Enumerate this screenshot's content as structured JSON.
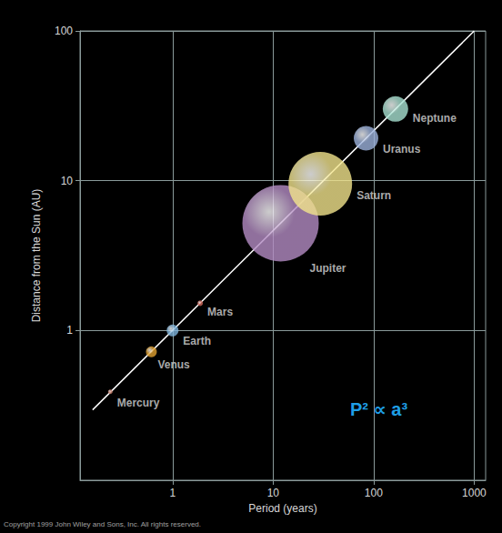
{
  "chart_data": {
    "type": "scatter",
    "log": true,
    "grid": true,
    "x_label": "Period (years)",
    "y_label": "Distance from the Sun (AU)",
    "labels": [
      "Mercury",
      "Venus",
      "Earth",
      "Mars",
      "Jupiter",
      "Saturn",
      "Uranus",
      "Neptune"
    ],
    "x": [
      0.24,
      0.615,
      1,
      1.88,
      11.86,
      29.46,
      84.0,
      164.8
    ],
    "values": [
      0.39,
      0.72,
      1,
      1.52,
      5.2,
      9.54,
      19.2,
      30.1
    ],
    "sizes": [
      5,
      12,
      13,
      6,
      84,
      70,
      27,
      28
    ],
    "colors": [
      "#c8806e",
      "#e0a030",
      "#7fb4dc",
      "#d0685c",
      "#b48cc4",
      "#f2e48c",
      "#9cb2dc",
      "#a8e2d2"
    ],
    "fit_line": {
      "x": [
        0.16,
        1000
      ],
      "values": [
        0.295,
        100
      ],
      "color": "#ffffff"
    },
    "xlim": [
      0.12,
      1300
    ],
    "xticks": [
      1,
      10,
      100,
      1000
    ],
    "ylim": [
      0.1,
      100
    ],
    "yticks": [
      1,
      10,
      100
    ],
    "annotations": [
      {
        "text": "P² ∝ a³",
        "color": "#1e9ee6"
      }
    ],
    "caption": "Copyright 1999 John Wiley and Sons, Inc. All rights reserved."
  }
}
